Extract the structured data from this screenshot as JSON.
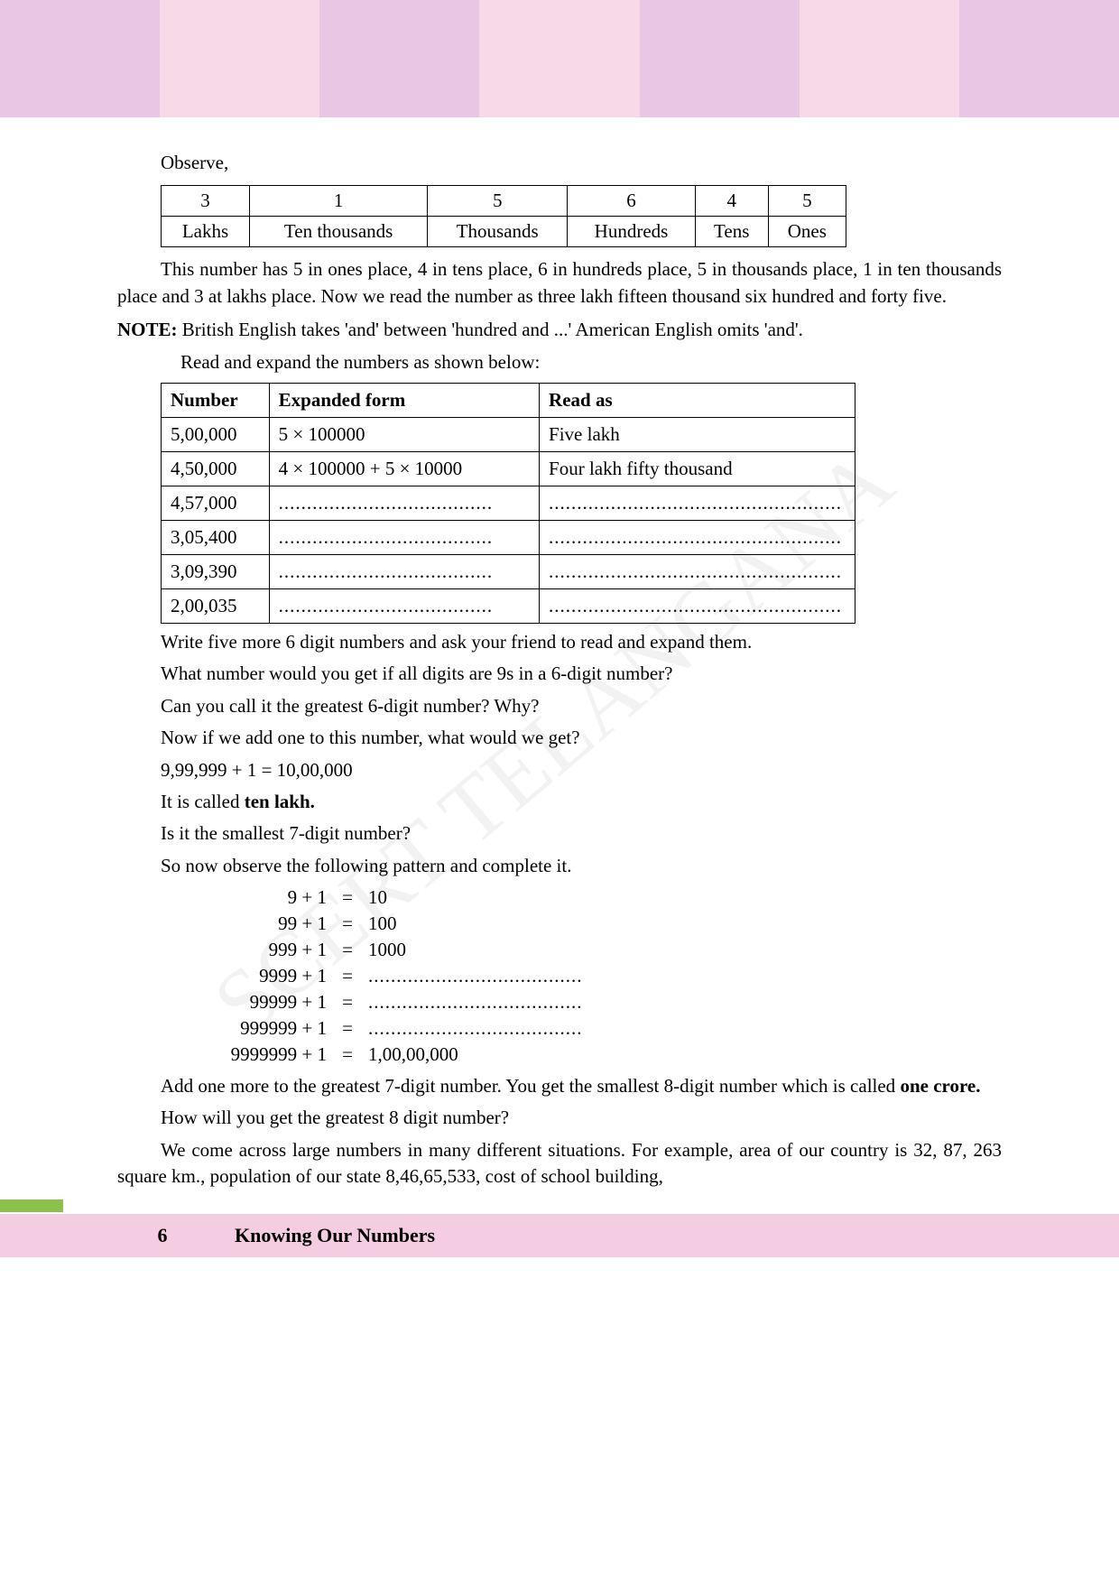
{
  "colors": {
    "band1": "#e9c6e3",
    "band2": "#f8d9e8",
    "footer_bar": "#f4cde2",
    "footer_accent": "#8bc34a",
    "text": "#000000",
    "watermark": "#bfbfbf"
  },
  "intro": {
    "observe": "Observe,"
  },
  "place_table": {
    "digits": [
      "3",
      "1",
      "5",
      "6",
      "4",
      "5"
    ],
    "labels": [
      "Lakhs",
      "Ten thousands",
      "Thousands",
      "Hundreds",
      "Tens",
      "Ones"
    ]
  },
  "desc": {
    "p1": "This number has 5 in ones place, 4 in tens place, 6 in hundreds place, 5 in thousands place, 1 in ten thousands place and 3 at lakhs place. Now we read the number as three lakh fifteen thousand six hundred and forty five."
  },
  "note": {
    "label": "NOTE:",
    "line1": " British English takes 'and' between 'hundred and ...' American English omits 'and'.",
    "line2": "Read and expand the numbers as shown below:"
  },
  "exp_table": {
    "headers": [
      "Number",
      "Expanded form",
      "Read as"
    ],
    "rows": [
      {
        "num": "5,00,000",
        "exp": "5 × 100000",
        "read": "Five lakh"
      },
      {
        "num": "4,50,000",
        "exp": "4 × 100000 + 5 × 10000",
        "read": "Four lakh fifty thousand"
      },
      {
        "num": "4,57,000",
        "exp": "......................................",
        "read": "...................................................."
      },
      {
        "num": "3,05,400",
        "exp": "......................................",
        "read": "...................................................."
      },
      {
        "num": "3,09,390",
        "exp": "......................................",
        "read": "...................................................."
      },
      {
        "num": "2,00,035",
        "exp": "......................................",
        "read": "...................................................."
      }
    ]
  },
  "after_table": {
    "q1": "Write five more 6 digit numbers and ask your friend to read and expand them.",
    "q2": "What number would you get if all digits are 9s in a 6-digit number?",
    "q3": "Can you call it the greatest 6-digit number? Why?",
    "q4": "Now if we add one to this number, what would we get?",
    "eqn": "9,99,999 + 1 = 10,00,000",
    "called_pre": "It is called ",
    "called_bold": "ten lakh.",
    "q5": "Is it the smallest 7-digit number?",
    "q6": "So now observe the following pattern and complete it."
  },
  "pattern": [
    {
      "l": "9 + 1",
      "r": "10"
    },
    {
      "l": "99 + 1",
      "r": "100"
    },
    {
      "l": "999 + 1",
      "r": "1000"
    },
    {
      "l": "9999 + 1",
      "r": "......................................"
    },
    {
      "l": "99999 + 1",
      "r": "......................................"
    },
    {
      "l": "999999 + 1",
      "r": "......................................"
    },
    {
      "l": "9999999 + 1",
      "r": "1,00,00,000"
    }
  ],
  "closing": {
    "p1a": "Add one more to the greatest 7-digit number. You get the smallest 8-digit number which is called ",
    "p1b": "one crore.",
    "p2": "How will you get the greatest 8 digit number?",
    "p3": "We come across large numbers in many different situations. For example, area of our country is 32, 87, 263 square km., population of our state  8,46,65,533, cost of school building,"
  },
  "footer": {
    "page": "6",
    "title": "Knowing Our Numbers"
  }
}
